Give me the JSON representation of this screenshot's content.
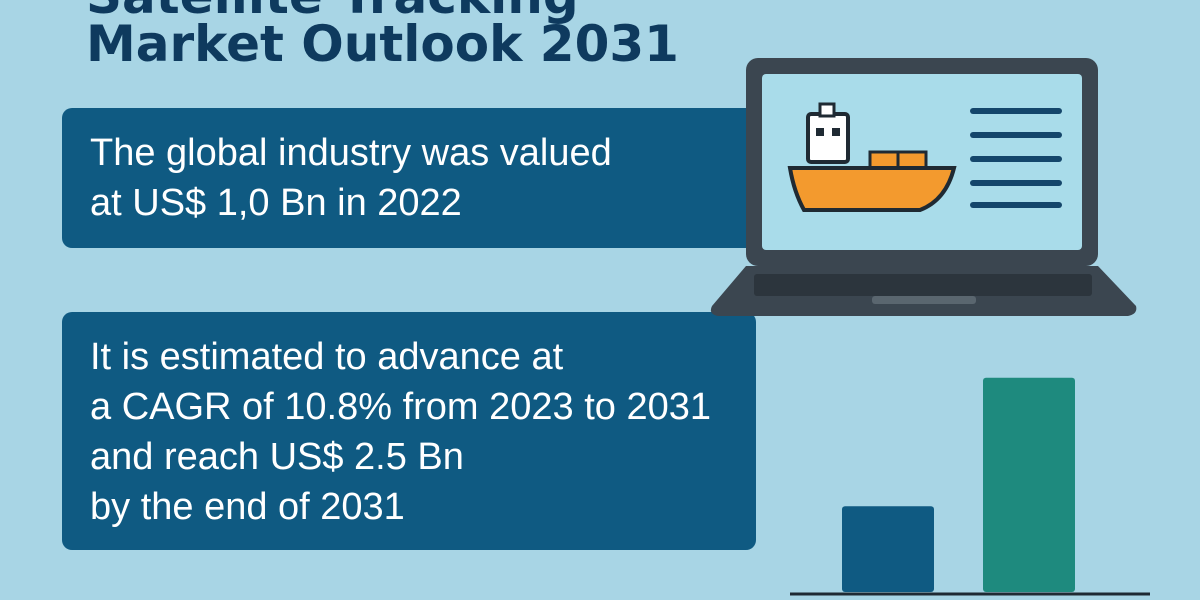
{
  "title": {
    "line1": "Market Outlook 2031",
    "cut_line": "Satellite Tracking"
  },
  "colors": {
    "background": "#a8d5e5",
    "title": "#0e3a5e",
    "panel": "#0f5a82",
    "bar_dark": "#0f5a82",
    "bar_teal": "#1e8a7e",
    "laptop_frame": "#3b4650",
    "screen": "#a9dcea",
    "ship_hull": "#f39a2e"
  },
  "card1": {
    "lines": [
      "The global industry was valued",
      "at US$ 1,0 Bn in 2022"
    ]
  },
  "card2": {
    "lines": [
      "It is estimated to advance at",
      "a CAGR of 10.8% from 2023 to 2031",
      "and reach US$ 2.5 Bn",
      "by the end of 2031"
    ]
  },
  "icons": {
    "laptop": "laptop-icon",
    "ship": "cargo-ship-icon",
    "text_lines": "text-lines-icon",
    "chart": "bar-chart-icon"
  },
  "chart_data": {
    "type": "bar",
    "categories": [
      "",
      ""
    ],
    "values": [
      1.0,
      2.5
    ],
    "title": "",
    "xlabel": "",
    "ylabel": "",
    "ylim": [
      0,
      2.8
    ],
    "grid": false
  }
}
